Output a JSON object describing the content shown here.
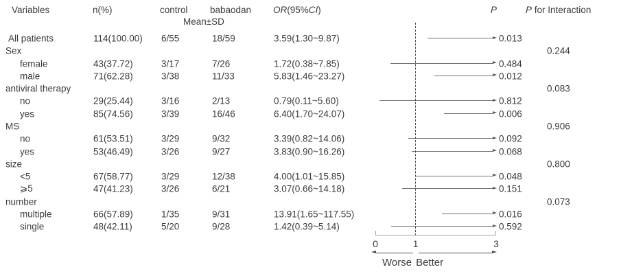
{
  "colors": {
    "text": "#3b3b3b",
    "ci_line": "#707070",
    "axis": "#a3a3a3",
    "reference_dash": "#4a4a4a"
  },
  "chart_data": {
    "type": "forest",
    "columns": {
      "variables": "Variables",
      "n_pct": "n(%)",
      "control": "control",
      "babaodan": "babaodan",
      "mean_sd": "Mean±SD",
      "or_label": "OR",
      "or_ci_open": "(95%",
      "ci_label": "CI",
      "or_ci_close": ")",
      "p_label": "P",
      "p_interaction_p": "P",
      "p_interaction_rest": "for Interaction"
    },
    "axis": {
      "xlim": [
        0,
        3
      ],
      "ticks": [
        0,
        1,
        3
      ],
      "reference_line": 1,
      "direction_labels": [
        "Worse",
        "Better"
      ],
      "grid": false
    },
    "rows": [
      {
        "type": "data",
        "indent": 0,
        "label": "All patients",
        "n": "114(100.00)",
        "control": "6/55",
        "babaodan": "18/59",
        "or": 3.59,
        "ci_low": 1.3,
        "ci_high": 9.87,
        "or_text": "3.59(1.30~9.87)",
        "p": "0.013"
      },
      {
        "type": "group",
        "label": "Sex",
        "p_interaction": "0.244"
      },
      {
        "type": "data",
        "indent": 1,
        "label": "female",
        "n": "43(37.72)",
        "control": "3/17",
        "babaodan": "7/26",
        "or": 1.72,
        "ci_low": 0.38,
        "ci_high": 7.85,
        "or_text": "1.72(0.38~7.85)",
        "p": "0.484"
      },
      {
        "type": "data",
        "indent": 1,
        "label": "male",
        "n": "71(62.28)",
        "control": "3/38",
        "babaodan": "11/33",
        "or": 5.83,
        "ci_low": 1.46,
        "ci_high": 23.27,
        "or_text": "5.83(1.46~23.27)",
        "p": "0.012"
      },
      {
        "type": "group",
        "label": "antiviral therapy",
        "p_interaction": "0.083"
      },
      {
        "type": "data",
        "indent": 1,
        "label": "no",
        "n": "29(25.44)",
        "control": "3/16",
        "babaodan": "2/13",
        "or": 0.79,
        "ci_low": 0.11,
        "ci_high": 5.6,
        "or_text": "0.79(0.11~5.60)",
        "p": "0.812"
      },
      {
        "type": "data",
        "indent": 1,
        "label": "yes",
        "n": "85(74.56)",
        "control": "3/39",
        "babaodan": "16/46",
        "or": 6.4,
        "ci_low": 1.7,
        "ci_high": 24.07,
        "or_text": "6.40(1.70~24.07)",
        "p": "0.006"
      },
      {
        "type": "group",
        "label": "MS",
        "p_interaction": "0.906"
      },
      {
        "type": "data",
        "indent": 1,
        "label": "no",
        "n": "61(53.51)",
        "control": "3/29",
        "babaodan": "9/32",
        "or": 3.39,
        "ci_low": 0.82,
        "ci_high": 14.06,
        "or_text": "3.39(0.82~14.06)",
        "p": "0.092"
      },
      {
        "type": "data",
        "indent": 1,
        "label": "yes",
        "n": "53(46.49)",
        "control": "3/26",
        "babaodan": "9/27",
        "or": 3.83,
        "ci_low": 0.9,
        "ci_high": 16.26,
        "or_text": "3.83(0.90~16.26)",
        "p": "0.068"
      },
      {
        "type": "group",
        "label": "size",
        "p_interaction": "0.800"
      },
      {
        "type": "data",
        "indent": 1,
        "label": "<5",
        "n": "67(58.77)",
        "control": "3/29",
        "babaodan": "12/38",
        "or": 4.0,
        "ci_low": 1.01,
        "ci_high": 15.85,
        "or_text": "4.00(1.01~15.85)",
        "p": "0.048"
      },
      {
        "type": "data",
        "indent": 1,
        "label": "⩾5",
        "n": "47(41.23)",
        "control": "3/26",
        "babaodan": "6/21",
        "or": 3.07,
        "ci_low": 0.66,
        "ci_high": 14.18,
        "or_text": "3.07(0.66~14.18)",
        "p": "0.151"
      },
      {
        "type": "group",
        "label": "number",
        "p_interaction": "0.073"
      },
      {
        "type": "data",
        "indent": 1,
        "label": "multiple",
        "n": "66(57.89)",
        "control": "1/35",
        "babaodan": "9/31",
        "or": 13.91,
        "ci_low": 1.65,
        "ci_high": 117.55,
        "or_text": "13.91(1.65~117.55)",
        "p": "0.016"
      },
      {
        "type": "data",
        "indent": 1,
        "label": "single",
        "n": "48(42.11)",
        "control": "5/20",
        "babaodan": "9/28",
        "or": 1.42,
        "ci_low": 0.39,
        "ci_high": 5.14,
        "or_text": "1.42(0.39~5.14)",
        "p": "0.592"
      }
    ]
  }
}
